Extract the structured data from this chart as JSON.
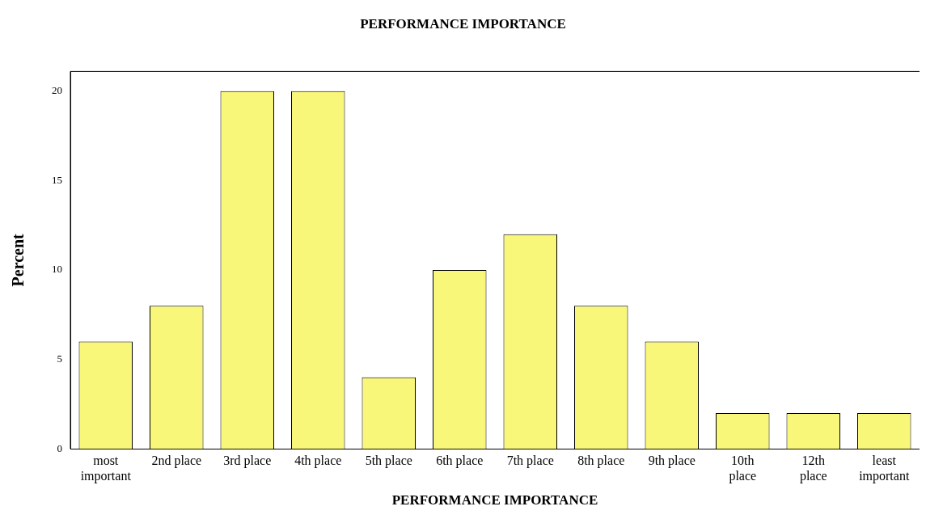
{
  "chart_data": {
    "type": "bar",
    "title": "PERFORMANCE IMPORTANCE",
    "xlabel": "PERFORMANCE IMPORTANCE",
    "ylabel": "Percent",
    "categories": [
      "most important",
      "2nd place",
      "3rd place",
      "4th place",
      "5th place",
      "6th place",
      "7th place",
      "8th place",
      "9th place",
      "10th place",
      "12th place",
      "least important"
    ],
    "values": [
      6,
      8,
      20,
      20,
      4,
      10,
      12,
      8,
      6,
      2,
      2,
      2
    ],
    "color": "#f9f77a",
    "ylim": [
      0,
      21.1
    ],
    "yticks": [
      0,
      5,
      10,
      15,
      20
    ],
    "grid": false,
    "legend": false
  }
}
